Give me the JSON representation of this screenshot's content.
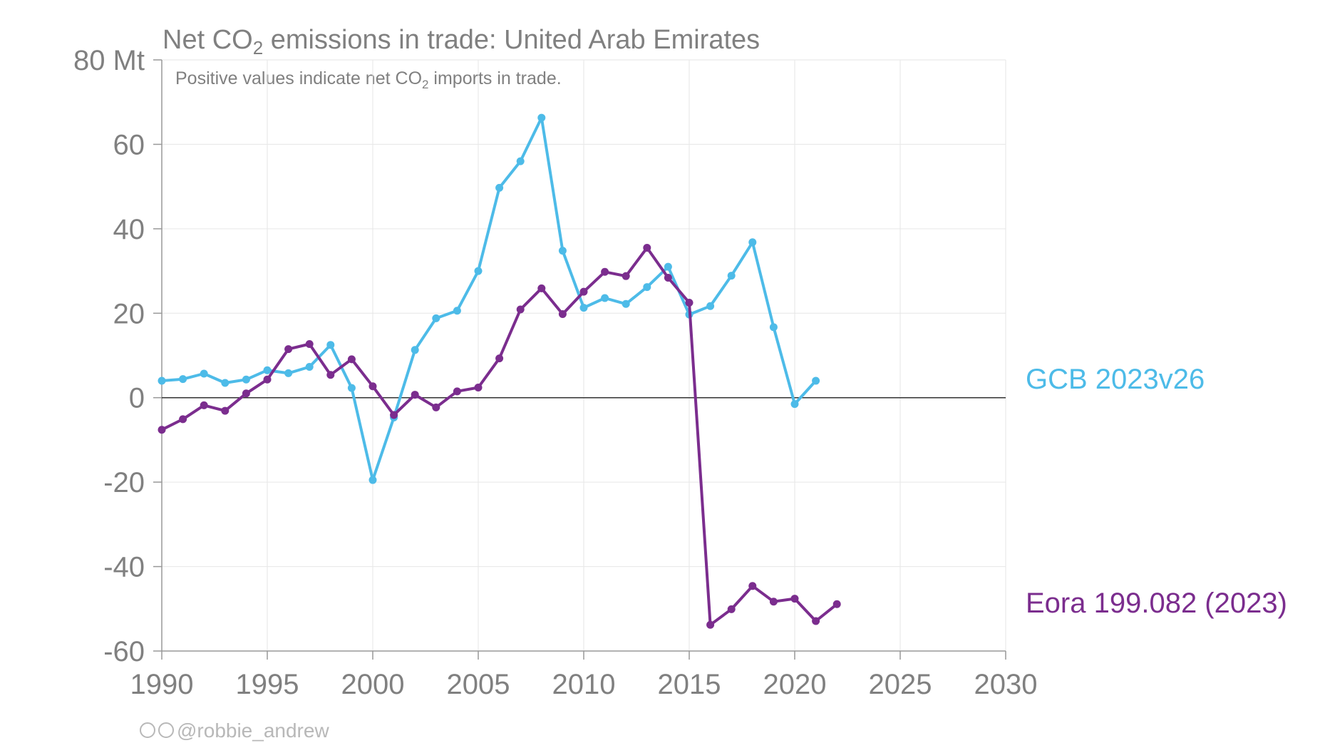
{
  "chart_data": {
    "type": "line",
    "title_prefix": "Net CO",
    "title_sub": "2",
    "title_suffix": " emissions in trade: United Arab Emirates",
    "subtitle_prefix": "Positive values indicate net CO",
    "subtitle_sub": "2",
    "subtitle_suffix": " imports in trade.",
    "xlim": [
      1990,
      2030
    ],
    "ylim": [
      -60,
      80
    ],
    "x_ticks": [
      1990,
      1995,
      2000,
      2005,
      2010,
      2015,
      2020,
      2025,
      2030
    ],
    "y_ticks": [
      {
        "value": 80,
        "label": "80 Mt"
      },
      {
        "value": 60,
        "label": "60"
      },
      {
        "value": 40,
        "label": "40"
      },
      {
        "value": 20,
        "label": "20"
      },
      {
        "value": 0,
        "label": "0"
      },
      {
        "value": -20,
        "label": "-20"
      },
      {
        "value": -40,
        "label": "-40"
      },
      {
        "value": -60,
        "label": "-60"
      }
    ],
    "grid": true,
    "series": [
      {
        "name": "GCB 2023v26",
        "color": "#4dbbe8",
        "x": [
          1990,
          1991,
          1992,
          1993,
          1994,
          1995,
          1996,
          1997,
          1998,
          1999,
          2000,
          2001,
          2002,
          2003,
          2004,
          2005,
          2006,
          2007,
          2008,
          2009,
          2010,
          2011,
          2012,
          2013,
          2014,
          2015,
          2016,
          2017,
          2018,
          2019,
          2020,
          2021
        ],
        "values": [
          4.0,
          4.4,
          5.7,
          3.5,
          4.3,
          6.5,
          5.8,
          7.3,
          12.5,
          2.3,
          -19.5,
          -4.7,
          11.3,
          18.8,
          20.6,
          30.0,
          49.7,
          56.0,
          66.3,
          34.8,
          21.3,
          23.6,
          22.2,
          26.2,
          31.0,
          19.7,
          21.7,
          28.9,
          36.8,
          16.7,
          -1.5,
          4.0
        ]
      },
      {
        "name": "Eora 199.082 (2023)",
        "color": "#7b2d8e",
        "x": [
          1990,
          1991,
          1992,
          1993,
          1994,
          1995,
          1996,
          1997,
          1998,
          1999,
          2000,
          2001,
          2002,
          2003,
          2004,
          2005,
          2006,
          2007,
          2008,
          2009,
          2010,
          2011,
          2012,
          2013,
          2014,
          2015,
          2016,
          2017,
          2018,
          2019,
          2020,
          2021,
          2022
        ],
        "values": [
          -7.6,
          -5.1,
          -1.8,
          -3.1,
          1.0,
          4.3,
          11.5,
          12.7,
          5.4,
          9.1,
          2.7,
          -4.1,
          0.7,
          -2.3,
          1.5,
          2.4,
          9.3,
          20.9,
          25.9,
          19.8,
          25.1,
          29.8,
          28.8,
          35.5,
          28.4,
          22.5,
          -53.8,
          -50.1,
          -44.6,
          -48.3,
          -47.6,
          -52.9,
          -48.9
        ]
      }
    ]
  },
  "credit": "@robbie_andrew"
}
